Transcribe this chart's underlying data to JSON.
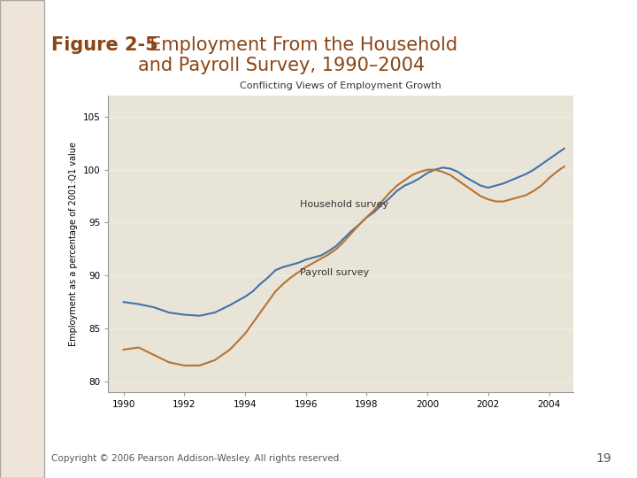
{
  "title_bold": "Figure 2-5",
  "title_rest": "  Employment From the Household\nand Payroll Survey, 1990–2004",
  "chart_title": "Conflicting Views of Employment Growth",
  "ylabel": "Employment as a percentage of 2001:Q1 value",
  "xlabel_ticks": [
    1990,
    1992,
    1994,
    1996,
    1998,
    2000,
    2002,
    2004
  ],
  "yticks": [
    80,
    85,
    90,
    95,
    100,
    105
  ],
  "ylim": [
    79,
    107
  ],
  "xlim": [
    1989.5,
    2004.8
  ],
  "bg_color": "#e8e4d8",
  "fig_bg": "#ffffff",
  "household_color": "#4472a8",
  "payroll_color": "#b87333",
  "household_label": "Household survey",
  "payroll_label": "Payroll survey",
  "footer": "Copyright © 2006 Pearson Addison-Wesley. All rights reserved.",
  "page_number": "19",
  "title_color": "#8B4513",
  "household_x": [
    1990,
    1990.5,
    1991,
    1991.5,
    1992,
    1992.5,
    1993,
    1993.5,
    1994,
    1994.25,
    1994.5,
    1994.75,
    1995,
    1995.25,
    1995.5,
    1995.75,
    1996,
    1996.25,
    1996.5,
    1996.75,
    1997,
    1997.25,
    1997.5,
    1997.75,
    1998,
    1998.25,
    1998.5,
    1998.75,
    1999,
    1999.25,
    1999.5,
    1999.75,
    2000,
    2000.25,
    2000.5,
    2000.75,
    2001,
    2001.25,
    2001.5,
    2001.75,
    2002,
    2002.25,
    2002.5,
    2002.75,
    2003,
    2003.25,
    2003.5,
    2003.75,
    2004,
    2004.25,
    2004.5
  ],
  "household_y": [
    87.5,
    87.3,
    87.0,
    86.5,
    86.3,
    86.2,
    86.5,
    87.2,
    88.0,
    88.5,
    89.2,
    89.8,
    90.5,
    90.8,
    91.0,
    91.2,
    91.5,
    91.7,
    91.9,
    92.3,
    92.8,
    93.5,
    94.2,
    94.8,
    95.5,
    96.0,
    96.7,
    97.3,
    98.0,
    98.5,
    98.8,
    99.2,
    99.7,
    100.0,
    100.2,
    100.1,
    99.8,
    99.3,
    98.9,
    98.5,
    98.3,
    98.5,
    98.7,
    99.0,
    99.3,
    99.6,
    100.0,
    100.5,
    101.0,
    101.5,
    102.0
  ],
  "payroll_x": [
    1990,
    1990.5,
    1991,
    1991.5,
    1992,
    1992.5,
    1993,
    1993.5,
    1994,
    1994.25,
    1994.5,
    1994.75,
    1995,
    1995.25,
    1995.5,
    1995.75,
    1996,
    1996.25,
    1996.5,
    1996.75,
    1997,
    1997.25,
    1997.5,
    1997.75,
    1998,
    1998.25,
    1998.5,
    1998.75,
    1999,
    1999.25,
    1999.5,
    1999.75,
    2000,
    2000.25,
    2000.5,
    2000.75,
    2001,
    2001.25,
    2001.5,
    2001.75,
    2002,
    2002.25,
    2002.5,
    2002.75,
    2003,
    2003.25,
    2003.5,
    2003.75,
    2004,
    2004.25,
    2004.5
  ],
  "payroll_y": [
    83.0,
    83.2,
    82.5,
    81.8,
    81.5,
    81.5,
    82.0,
    83.0,
    84.5,
    85.5,
    86.5,
    87.5,
    88.5,
    89.2,
    89.8,
    90.3,
    90.8,
    91.2,
    91.6,
    92.0,
    92.5,
    93.2,
    94.0,
    94.8,
    95.5,
    96.2,
    97.0,
    97.8,
    98.5,
    99.0,
    99.5,
    99.8,
    100.0,
    100.0,
    99.8,
    99.5,
    99.0,
    98.5,
    98.0,
    97.5,
    97.2,
    97.0,
    97.0,
    97.2,
    97.4,
    97.6,
    98.0,
    98.5,
    99.2,
    99.8,
    100.3
  ]
}
